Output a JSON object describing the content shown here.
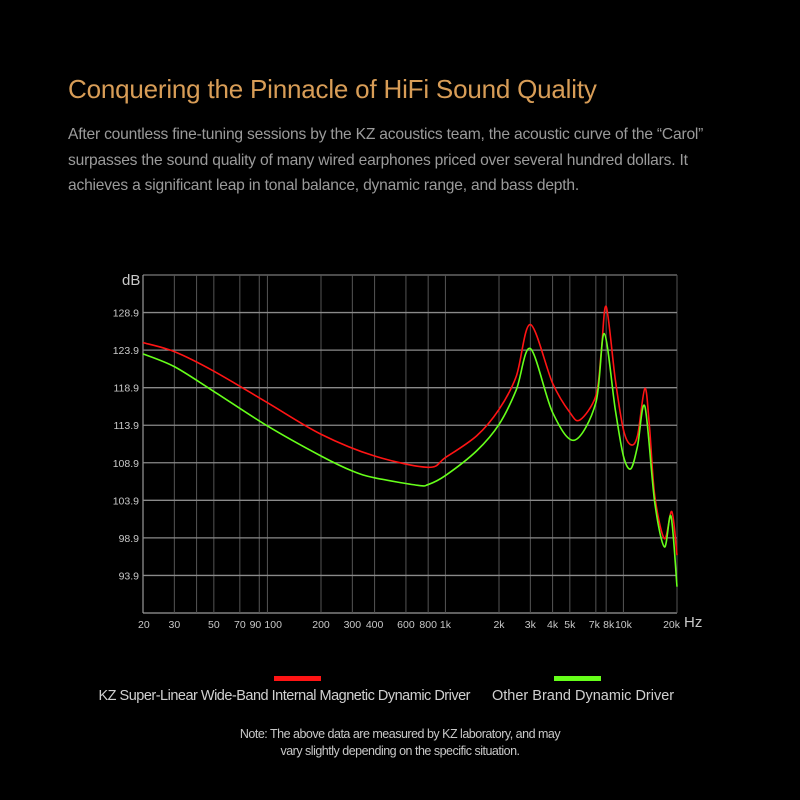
{
  "header": {
    "title": "Conquering the Pinnacle of HiFi Sound Quality",
    "description_lines": [
      "After countless fine-tuning sessions by the KZ acoustics team, the acoustic curve of the  “Carol”",
      "surpasses the sound quality of many wired earphones priced over several hundred dollars. It",
      "achieves a significant leap in tonal balance, dynamic range, and bass depth."
    ]
  },
  "chart_data": {
    "type": "line",
    "ylabel": "dB",
    "xlabel": "Hz",
    "x_scale": "log",
    "xlim": [
      20,
      20000
    ],
    "ylim": [
      88.9,
      133.9
    ],
    "grid": true,
    "y_ticks": [
      128.9,
      123.9,
      118.9,
      113.9,
      108.9,
      103.9,
      98.9,
      93.9
    ],
    "y_tick_labels": [
      "128.9",
      "123.9",
      "118.9",
      "113.9",
      "108.9",
      "103.9",
      "98.9",
      "93.9"
    ],
    "x_gridlines": [
      30,
      40,
      50,
      70,
      90,
      100,
      200,
      300,
      400,
      600,
      800,
      1000,
      2000,
      3000,
      4000,
      5000,
      7000,
      8000,
      10000,
      20000
    ],
    "x_ticks": [
      20,
      30,
      50,
      70,
      90,
      100,
      200,
      300,
      400,
      600,
      800,
      1000,
      2000,
      3000,
      4000,
      5000,
      7000,
      8000,
      10000,
      20000
    ],
    "x_tick_labels": [
      "20",
      "30",
      "50",
      "70",
      "90",
      "100",
      "200",
      "300",
      "400",
      "600",
      "800",
      "1k",
      "2k",
      "3k",
      "4k",
      "5k",
      "7k",
      "8k",
      "10k",
      "20k"
    ],
    "legend_position": "bottom",
    "series": [
      {
        "name": "KZ Super-Linear Wide-Band Internal Magnetic Dynamic Driver",
        "color": "#ff1414",
        "points": [
          [
            20,
            124.9
          ],
          [
            30,
            123.7
          ],
          [
            50,
            121.1
          ],
          [
            100,
            116.9
          ],
          [
            200,
            112.7
          ],
          [
            400,
            109.8
          ],
          [
            800,
            108.3
          ],
          [
            1000,
            109.6
          ],
          [
            1500,
            112.5
          ],
          [
            2000,
            116.0
          ],
          [
            2500,
            120.4
          ],
          [
            3000,
            127.3
          ],
          [
            4000,
            119.5
          ],
          [
            5000,
            115.6
          ],
          [
            5700,
            114.6
          ],
          [
            7000,
            117.8
          ],
          [
            7500,
            123.5
          ],
          [
            8000,
            129.7
          ],
          [
            9000,
            120.0
          ],
          [
            10000,
            113.3
          ],
          [
            11000,
            111.3
          ],
          [
            12000,
            112.5
          ],
          [
            13200,
            118.8
          ],
          [
            14000,
            113.8
          ],
          [
            15000,
            104.5
          ],
          [
            17000,
            98.8
          ],
          [
            18700,
            102.4
          ],
          [
            20000,
            96.6
          ]
        ]
      },
      {
        "name": "Other Brand Dynamic Driver",
        "color": "#66ff1a",
        "points": [
          [
            20,
            123.4
          ],
          [
            30,
            121.7
          ],
          [
            50,
            118.4
          ],
          [
            100,
            113.8
          ],
          [
            200,
            109.8
          ],
          [
            300,
            107.8
          ],
          [
            400,
            106.9
          ],
          [
            700,
            105.9
          ],
          [
            800,
            106.0
          ],
          [
            1000,
            107.2
          ],
          [
            1500,
            110.5
          ],
          [
            2000,
            114.0
          ],
          [
            2500,
            118.6
          ],
          [
            3000,
            124.1
          ],
          [
            4000,
            115.6
          ],
          [
            5300,
            111.9
          ],
          [
            7000,
            116.9
          ],
          [
            7800,
            126.1
          ],
          [
            9000,
            116.0
          ],
          [
            10000,
            109.8
          ],
          [
            11000,
            108.1
          ],
          [
            12000,
            111.1
          ],
          [
            13200,
            116.4
          ],
          [
            15000,
            103.6
          ],
          [
            17000,
            97.7
          ],
          [
            18500,
            101.8
          ],
          [
            20000,
            92.4
          ]
        ]
      }
    ]
  },
  "legend": {
    "items": [
      {
        "label": "KZ Super-Linear Wide-Band Internal Magnetic Dynamic Driver",
        "color": "#ff1414"
      },
      {
        "label": "Other Brand Dynamic Driver",
        "color": "#66ff1a"
      }
    ]
  },
  "note": {
    "lines": [
      "Note: The above data are measured by KZ laboratory, and may",
      "vary slightly depending on the specific situation."
    ]
  }
}
